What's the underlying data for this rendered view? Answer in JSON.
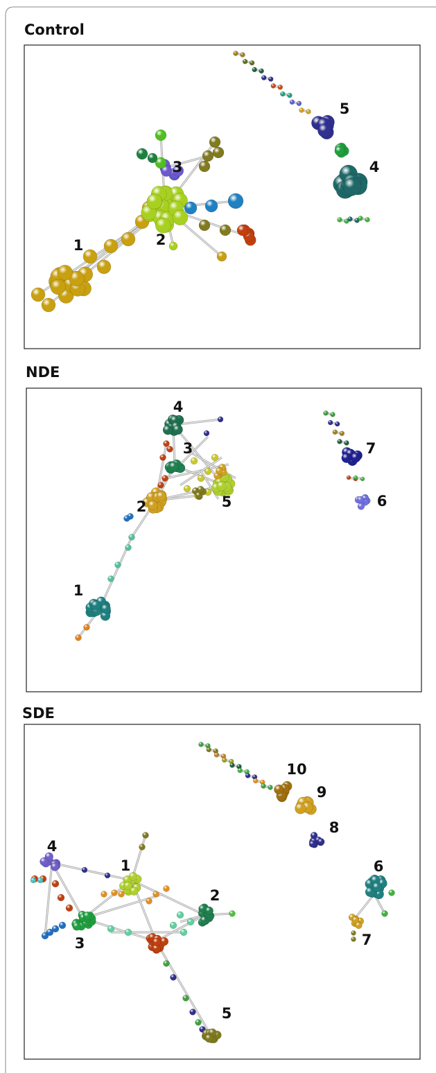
{
  "panels": [
    {
      "title": "Control",
      "labels": [
        "1",
        "2",
        "3",
        "4",
        "5"
      ]
    },
    {
      "title": "NDE",
      "labels": [
        "1",
        "2",
        "3",
        "4",
        "5",
        "6",
        "7"
      ]
    },
    {
      "title": "SDE",
      "labels": [
        "1",
        "2",
        "3",
        "4",
        "5",
        "6",
        "7",
        "8",
        "9",
        "10"
      ]
    }
  ]
}
